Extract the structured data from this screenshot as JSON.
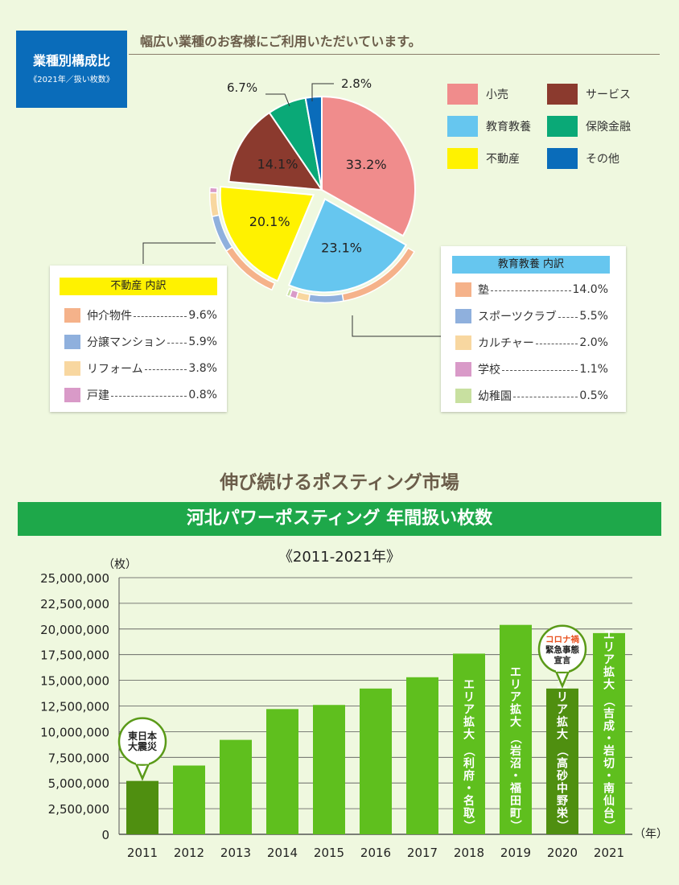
{
  "badge": {
    "title": "業種別構成比",
    "subtitle": "《2021年／扱い枚数》"
  },
  "headline": "幅広い業種のお客様にご利用いただいています。",
  "pie_legend": [
    {
      "label": "小売",
      "color": "#f08c8c"
    },
    {
      "label": "サービス",
      "color": "#8b3a2e"
    },
    {
      "label": "教育教養",
      "color": "#66c6ef"
    },
    {
      "label": "保険金融",
      "color": "#0aa977"
    },
    {
      "label": "不動産",
      "color": "#fff200"
    },
    {
      "label": "その他",
      "color": "#0a6cba"
    }
  ],
  "education_box": {
    "title": "教育教養 内訳",
    "title_color": "#66c6ef",
    "items": [
      {
        "label": "塾",
        "value": "14.0%",
        "color": "#f5b28a"
      },
      {
        "label": "スポーツクラブ",
        "value": "5.5%",
        "color": "#8fb0dd"
      },
      {
        "label": "カルチャー",
        "value": "2.0%",
        "color": "#f8d7a0"
      },
      {
        "label": "学校",
        "value": "1.1%",
        "color": "#d99ac8"
      },
      {
        "label": "幼稚園",
        "value": "0.5%",
        "color": "#c8e0a0"
      }
    ]
  },
  "realestate_box": {
    "title": "不動産 内訳",
    "title_color": "#fff200",
    "items": [
      {
        "label": "仲介物件",
        "value": "9.6%",
        "color": "#f5b28a"
      },
      {
        "label": "分譲マンション",
        "value": "5.9%",
        "color": "#8fb0dd"
      },
      {
        "label": "リフォーム",
        "value": "3.8%",
        "color": "#f8d7a0"
      },
      {
        "label": "戸建",
        "value": "0.8%",
        "color": "#d99ac8"
      }
    ]
  },
  "section_title": "伸び続けるポスティング市場",
  "banner_title": "河北パワーポスティング 年間扱い枚数",
  "period": "《2011-2021年》",
  "chart_data": [
    {
      "type": "pie",
      "slices": [
        {
          "label": "小売",
          "value": 33.2,
          "display": "33.2%",
          "color": "#f08c8c"
        },
        {
          "label": "教育教養",
          "value": 23.1,
          "display": "23.1%",
          "color": "#66c6ef"
        },
        {
          "label": "不動産",
          "value": 20.1,
          "display": "20.1%",
          "color": "#fff200"
        },
        {
          "label": "サービス",
          "value": 14.1,
          "display": "14.1%",
          "color": "#8b3a2e"
        },
        {
          "label": "保険金融",
          "value": 6.7,
          "display": "6.7%",
          "color": "#0aa977"
        },
        {
          "label": "その他",
          "value": 2.8,
          "display": "2.8%",
          "color": "#0a6cba"
        }
      ],
      "sub_breakdowns": {
        "教育教養": [
          14.0,
          5.5,
          2.0,
          1.1,
          0.5
        ],
        "不動産": [
          9.6,
          5.9,
          3.8,
          0.8
        ]
      }
    },
    {
      "type": "bar",
      "categories": [
        "2011",
        "2012",
        "2013",
        "2014",
        "2015",
        "2016",
        "2017",
        "2018",
        "2019",
        "2020",
        "2021"
      ],
      "values": [
        5200000,
        6700000,
        9200000,
        12200000,
        12600000,
        14200000,
        15300000,
        17600000,
        20400000,
        14200000,
        19600000
      ],
      "bar_labels": [
        "",
        "",
        "",
        "",
        "",
        "",
        "",
        "エリア拡大（利府・名取）",
        "エリア拡大（岩沼・福田町）",
        "エリア拡大（高砂中野栄）",
        "エリア拡大（吉成・岩切・南仙台）"
      ],
      "highlight": [
        "2011",
        "2020"
      ],
      "callouts": [
        {
          "category": "2011",
          "lines": [
            "東日本",
            "大震災"
          ]
        },
        {
          "category": "2020",
          "lines": [
            "コロナ禍",
            "緊急事態",
            "宣言"
          ],
          "highlight_line": 0
        }
      ],
      "ylim": [
        0,
        25000000
      ],
      "yticks": [
        "0",
        "2,500,000",
        "5,000,000",
        "7,500,000",
        "10,000,000",
        "12,500,000",
        "15,000,000",
        "17,500,000",
        "20,000,000",
        "22,500,000",
        "25,000,000"
      ],
      "yunit": "（枚）",
      "xunit": "（年）",
      "grid": true,
      "colors": {
        "bar": "#5fbf1e",
        "bar_dark": "#4f8f10",
        "callout_border": "#5a9a18",
        "highlight_text": "#e8501e"
      }
    }
  ]
}
